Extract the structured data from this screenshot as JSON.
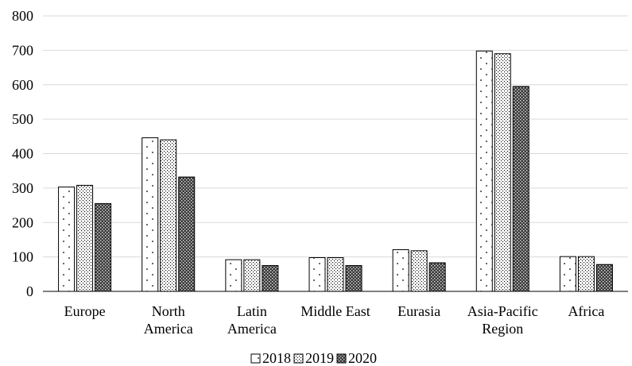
{
  "chart_data": {
    "type": "bar",
    "title": "",
    "xlabel": "",
    "ylabel": "",
    "ylim": [
      0,
      800
    ],
    "yticks": [
      0,
      100,
      200,
      300,
      400,
      500,
      600,
      700,
      800
    ],
    "grid": true,
    "legend_position": "bottom",
    "categories": [
      [
        "Europe"
      ],
      [
        "North",
        "America"
      ],
      [
        "Latin",
        "America"
      ],
      [
        "Middle East"
      ],
      [
        "Eurasia"
      ],
      [
        "Asia-Pacific",
        "Region"
      ],
      [
        "Africa"
      ]
    ],
    "series": [
      {
        "name": "2018",
        "pattern": "sparse-dots",
        "values": [
          303,
          446,
          92,
          98,
          121,
          698,
          101
        ]
      },
      {
        "name": "2019",
        "pattern": "fine-dots",
        "values": [
          308,
          440,
          92,
          98,
          118,
          690,
          101
        ]
      },
      {
        "name": "2020",
        "pattern": "dense-checker",
        "values": [
          255,
          332,
          75,
          75,
          83,
          595,
          78
        ]
      }
    ],
    "colors": {
      "gridline": "#d9d9d9",
      "bar_outline": "#000000",
      "axis": "#000000"
    }
  }
}
